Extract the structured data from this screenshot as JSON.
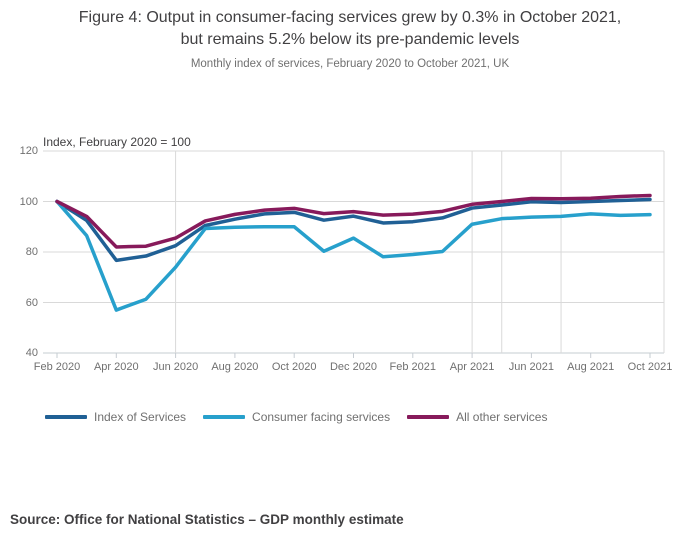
{
  "header": {
    "title_line1": "Figure 4: Output in consumer-facing services grew by 0.3% in October 2021,",
    "title_line2": "but remains 5.2% below its pre-pandemic levels",
    "subtitle": "Monthly index of services, February 2020 to October 2021, UK"
  },
  "source": {
    "text": "Source: Office for National Statistics – GDP monthly estimate"
  },
  "colors": {
    "grid": "#d9d9d9",
    "axis": "#c6ccd2",
    "text_primary": "#414042",
    "text_secondary": "#707070"
  },
  "chart_data": {
    "type": "line",
    "title": "Figure 4: Output in consumer-facing services grew by 0.3% in October 2021, but remains 5.2% below its pre-pandemic levels",
    "subtitle": "Monthly index of services, February 2020 to October 2021, UK",
    "axis_note": "Index, February 2020 = 100",
    "x": [
      "Feb 2020",
      "Mar 2020",
      "Apr 2020",
      "May 2020",
      "Jun 2020",
      "Jul 2020",
      "Aug 2020",
      "Sep 2020",
      "Oct 2020",
      "Nov 2020",
      "Dec 2020",
      "Jan 2021",
      "Feb 2021",
      "Mar 2021",
      "Apr 2021",
      "May 2021",
      "Jun 2021",
      "Jul 2021",
      "Aug 2021",
      "Sep 2021",
      "Oct 2021"
    ],
    "x_tick_interval": 2,
    "ylim": [
      40,
      120
    ],
    "yticks": [
      40,
      60,
      80,
      100,
      120
    ],
    "grid": "horizontal",
    "legend_position": "bottom",
    "vertical_reference_lines": [
      "Jun 2020",
      "Apr 2021",
      "May 2021",
      "Jul 2021"
    ],
    "series": [
      {
        "name": "Index of Services",
        "color": "#206095",
        "values": [
          100,
          92.5,
          76.7,
          78.4,
          82.5,
          90.5,
          93.0,
          95.1,
          95.7,
          92.6,
          94.2,
          91.5,
          92.0,
          93.5,
          97.4,
          98.6,
          99.9,
          99.6,
          100.0,
          100.4,
          100.8
        ]
      },
      {
        "name": "Consumer facing services",
        "color": "#27a0cc",
        "values": [
          100,
          86.5,
          57.0,
          61.3,
          74.0,
          89.3,
          89.8,
          90.0,
          90.0,
          80.3,
          85.5,
          78.1,
          79.0,
          80.2,
          91.0,
          93.2,
          93.8,
          94.1,
          95.1,
          94.5,
          94.8
        ]
      },
      {
        "name": "All other services",
        "color": "#871a5b",
        "values": [
          100,
          94.1,
          82.0,
          82.3,
          85.5,
          92.3,
          94.9,
          96.6,
          97.3,
          95.2,
          96.0,
          94.6,
          95.0,
          96.1,
          98.9,
          100.0,
          101.2,
          101.1,
          101.3,
          102.0,
          102.4
        ]
      }
    ]
  }
}
